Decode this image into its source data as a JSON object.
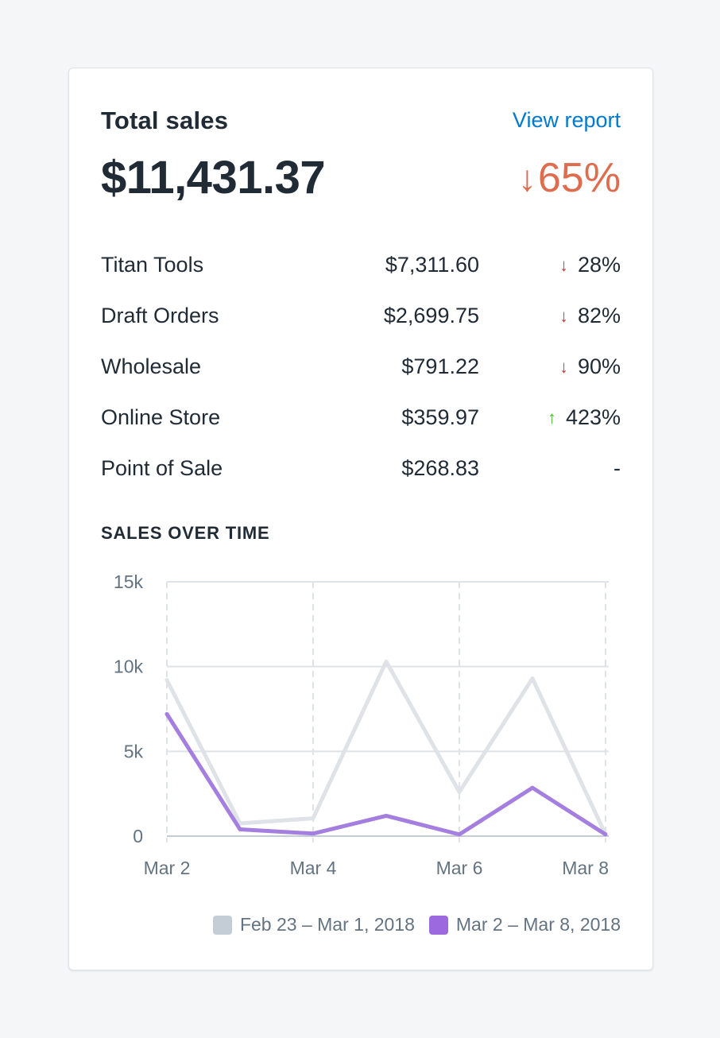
{
  "card": {
    "title": "Total sales",
    "view_report_label": "View report",
    "total_value": "$11,431.37",
    "total_change": "65%",
    "total_change_direction": "down"
  },
  "rows": [
    {
      "name": "Titan Tools",
      "value": "$7,311.60",
      "change": "28%",
      "direction": "down"
    },
    {
      "name": "Draft Orders",
      "value": "$2,699.75",
      "change": "82%",
      "direction": "down"
    },
    {
      "name": "Wholesale",
      "value": "$791.22",
      "change": "90%",
      "direction": "down"
    },
    {
      "name": "Online Store",
      "value": "$359.97",
      "change": "423%",
      "direction": "up"
    },
    {
      "name": "Point of Sale",
      "value": "$268.83",
      "change": "-",
      "direction": "none"
    }
  ],
  "section_title": "SALES OVER TIME",
  "colors": {
    "down": "#de3618",
    "up": "#50b83c",
    "link": "#007ace",
    "previous_series": "#dfe3e8",
    "current_series": "#a57fe0"
  },
  "chart_data": {
    "type": "line",
    "x": [
      "Mar 2",
      "Mar 3",
      "Mar 4",
      "Mar 5",
      "Mar 6",
      "Mar 7",
      "Mar 8"
    ],
    "x_tick_labels": [
      "Mar 2",
      "Mar 4",
      "Mar 6",
      "Mar 8"
    ],
    "y_tick_labels": [
      "0",
      "5k",
      "10k",
      "15k"
    ],
    "ylim": [
      0,
      15000
    ],
    "grid": true,
    "legend_position": "bottom-right",
    "series": [
      {
        "name": "Feb 23 – Mar 1, 2018",
        "color": "#dfe3e8",
        "swatch": "#c4cdd5",
        "values": [
          9200,
          750,
          1050,
          10300,
          2600,
          9300,
          100
        ]
      },
      {
        "name": "Mar 2 – Mar 8, 2018",
        "color": "#a57fe0",
        "swatch": "#9c6ade",
        "values": [
          7200,
          400,
          150,
          1200,
          100,
          2850,
          100
        ]
      }
    ]
  }
}
